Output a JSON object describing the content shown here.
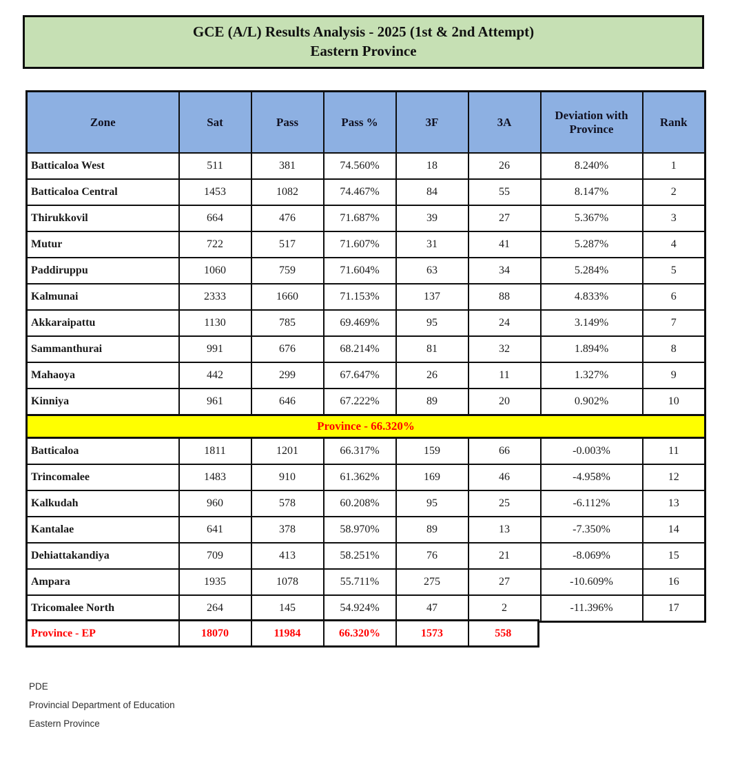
{
  "title": {
    "line1": "GCE (A/L) Results Analysis - 2025 (1st & 2nd Attempt)",
    "line2": "Eastern Province"
  },
  "colors": {
    "title_bg": "#C6E0B4",
    "header_bg": "#8DB0E2",
    "pass_green": "#C6E0B4",
    "dev_green": "#E2EFDA",
    "pass_salmon": "#FCE4D6",
    "dev_salmon": "#FCE4D6",
    "band_bg": "#FFFF00",
    "band_text": "#FF0000",
    "summary_text": "#FF0000"
  },
  "table": {
    "columns": [
      "Zone",
      "Sat",
      "Pass",
      "Pass %",
      "3F",
      "3A",
      "Deviation with Province",
      "Rank"
    ],
    "above_rows": [
      {
        "zone": "Batticaloa West",
        "sat": "511",
        "pass": "381",
        "pass_pct": "74.560%",
        "f3": "18",
        "a3": "26",
        "deviation": "8.240%",
        "rank": "1"
      },
      {
        "zone": "Batticaloa Central",
        "sat": "1453",
        "pass": "1082",
        "pass_pct": "74.467%",
        "f3": "84",
        "a3": "55",
        "deviation": "8.147%",
        "rank": "2"
      },
      {
        "zone": "Thirukkovil",
        "sat": "664",
        "pass": "476",
        "pass_pct": "71.687%",
        "f3": "39",
        "a3": "27",
        "deviation": "5.367%",
        "rank": "3"
      },
      {
        "zone": "Mutur",
        "sat": "722",
        "pass": "517",
        "pass_pct": "71.607%",
        "f3": "31",
        "a3": "41",
        "deviation": "5.287%",
        "rank": "4"
      },
      {
        "zone": "Paddiruppu",
        "sat": "1060",
        "pass": "759",
        "pass_pct": "71.604%",
        "f3": "63",
        "a3": "34",
        "deviation": "5.284%",
        "rank": "5"
      },
      {
        "zone": "Kalmunai",
        "sat": "2333",
        "pass": "1660",
        "pass_pct": "71.153%",
        "f3": "137",
        "a3": "88",
        "deviation": "4.833%",
        "rank": "6"
      },
      {
        "zone": "Akkaraipattu",
        "sat": "1130",
        "pass": "785",
        "pass_pct": "69.469%",
        "f3": "95",
        "a3": "24",
        "deviation": "3.149%",
        "rank": "7"
      },
      {
        "zone": "Sammanthurai",
        "sat": "991",
        "pass": "676",
        "pass_pct": "68.214%",
        "f3": "81",
        "a3": "32",
        "deviation": "1.894%",
        "rank": "8"
      },
      {
        "zone": "Mahaoya",
        "sat": "442",
        "pass": "299",
        "pass_pct": "67.647%",
        "f3": "26",
        "a3": "11",
        "deviation": "1.327%",
        "rank": "9"
      },
      {
        "zone": "Kinniya",
        "sat": "961",
        "pass": "646",
        "pass_pct": "67.222%",
        "f3": "89",
        "a3": "20",
        "deviation": "0.902%",
        "rank": "10"
      }
    ],
    "province_band": "Province - 66.320%",
    "below_rows": [
      {
        "zone": "Batticaloa",
        "sat": "1811",
        "pass": "1201",
        "pass_pct": "66.317%",
        "f3": "159",
        "a3": "66",
        "deviation": "-0.003%",
        "rank": "11"
      },
      {
        "zone": "Trincomalee",
        "sat": "1483",
        "pass": "910",
        "pass_pct": "61.362%",
        "f3": "169",
        "a3": "46",
        "deviation": "-4.958%",
        "rank": "12"
      },
      {
        "zone": "Kalkudah",
        "sat": "960",
        "pass": "578",
        "pass_pct": "60.208%",
        "f3": "95",
        "a3": "25",
        "deviation": "-6.112%",
        "rank": "13"
      },
      {
        "zone": "Kantalae",
        "sat": "641",
        "pass": "378",
        "pass_pct": "58.970%",
        "f3": "89",
        "a3": "13",
        "deviation": "-7.350%",
        "rank": "14"
      },
      {
        "zone": "Dehiattakandiya",
        "sat": "709",
        "pass": "413",
        "pass_pct": "58.251%",
        "f3": "76",
        "a3": "21",
        "deviation": "-8.069%",
        "rank": "15"
      },
      {
        "zone": "Ampara",
        "sat": "1935",
        "pass": "1078",
        "pass_pct": "55.711%",
        "f3": "275",
        "a3": "27",
        "deviation": "-10.609%",
        "rank": "16"
      },
      {
        "zone": "Tricomalee North",
        "sat": "264",
        "pass": "145",
        "pass_pct": "54.924%",
        "f3": "47",
        "a3": "2",
        "deviation": "-11.396%",
        "rank": "17"
      }
    ]
  },
  "summary": {
    "label": "Province - EP",
    "sat": "18070",
    "pass": "11984",
    "pass_pct": "66.320%",
    "f3": "1573",
    "a3": "558"
  },
  "footer": {
    "line1": "PDE",
    "line2": "Provincial Department of Education",
    "line3": "Eastern Province"
  }
}
